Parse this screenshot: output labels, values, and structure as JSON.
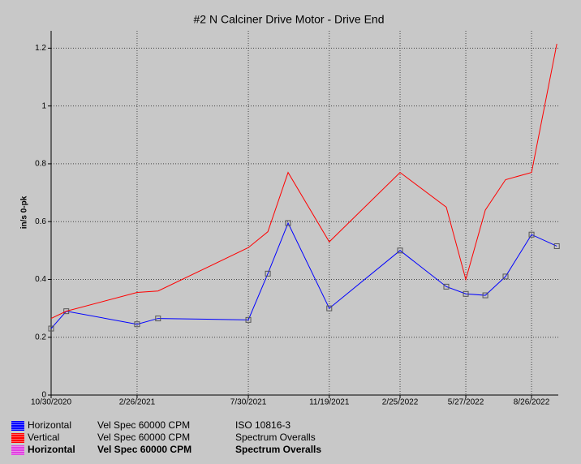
{
  "chart_data": {
    "type": "line",
    "title": "#2 N Calciner Drive Motor - Drive End",
    "y_label": "in/s 0-pk",
    "x": [
      "2020-10-30",
      "2020-11-20",
      "2021-02-26",
      "2021-03-27",
      "2021-07-30",
      "2021-08-26",
      "2021-09-23",
      "2021-11-19",
      "2022-02-25",
      "2022-04-30",
      "2022-05-27",
      "2022-06-23",
      "2022-07-21",
      "2022-08-26",
      "2022-09-30"
    ],
    "series": [
      {
        "name": "Horizontal",
        "measurement": "Vel Spec 60000 CPM",
        "source": "ISO 10816-3",
        "color": "#0000ff",
        "markers": true,
        "values": [
          0.23,
          0.29,
          0.245,
          0.265,
          0.26,
          0.42,
          0.595,
          0.3,
          0.5,
          0.375,
          0.35,
          0.345,
          0.41,
          0.555,
          0.515
        ]
      },
      {
        "name": "Vertical",
        "measurement": "Vel Spec 60000 CPM",
        "source": "Spectrum Overalls",
        "color": "#ff0000",
        "markers": false,
        "values": [
          0.265,
          0.29,
          0.355,
          0.36,
          0.51,
          0.565,
          0.77,
          0.53,
          0.77,
          0.65,
          0.4,
          0.64,
          0.745,
          0.77,
          1.215
        ]
      },
      {
        "name": "Horizontal",
        "measurement": "Vel Spec 60000 CPM",
        "source": "Spectrum Overalls",
        "color": "#e040e0",
        "bold": true
      }
    ],
    "xlim": [
      "2020-10-30",
      "2022-10-02"
    ],
    "xticks": [
      {
        "value": "2020-10-30",
        "label": "10/30/2020"
      },
      {
        "value": "2021-02-26",
        "label": "2/26/2021"
      },
      {
        "value": "2021-07-30",
        "label": "7/30/2021"
      },
      {
        "value": "2021-11-19",
        "label": "11/19/2021"
      },
      {
        "value": "2022-02-25",
        "label": "2/25/2022"
      },
      {
        "value": "2022-05-27",
        "label": "5/27/2022"
      },
      {
        "value": "2022-08-26",
        "label": "8/26/2022"
      }
    ],
    "ylim": [
      0,
      1.26
    ],
    "yticks": [
      0,
      0.2,
      0.4,
      0.6,
      0.8,
      1,
      1.2
    ],
    "grid": true
  }
}
